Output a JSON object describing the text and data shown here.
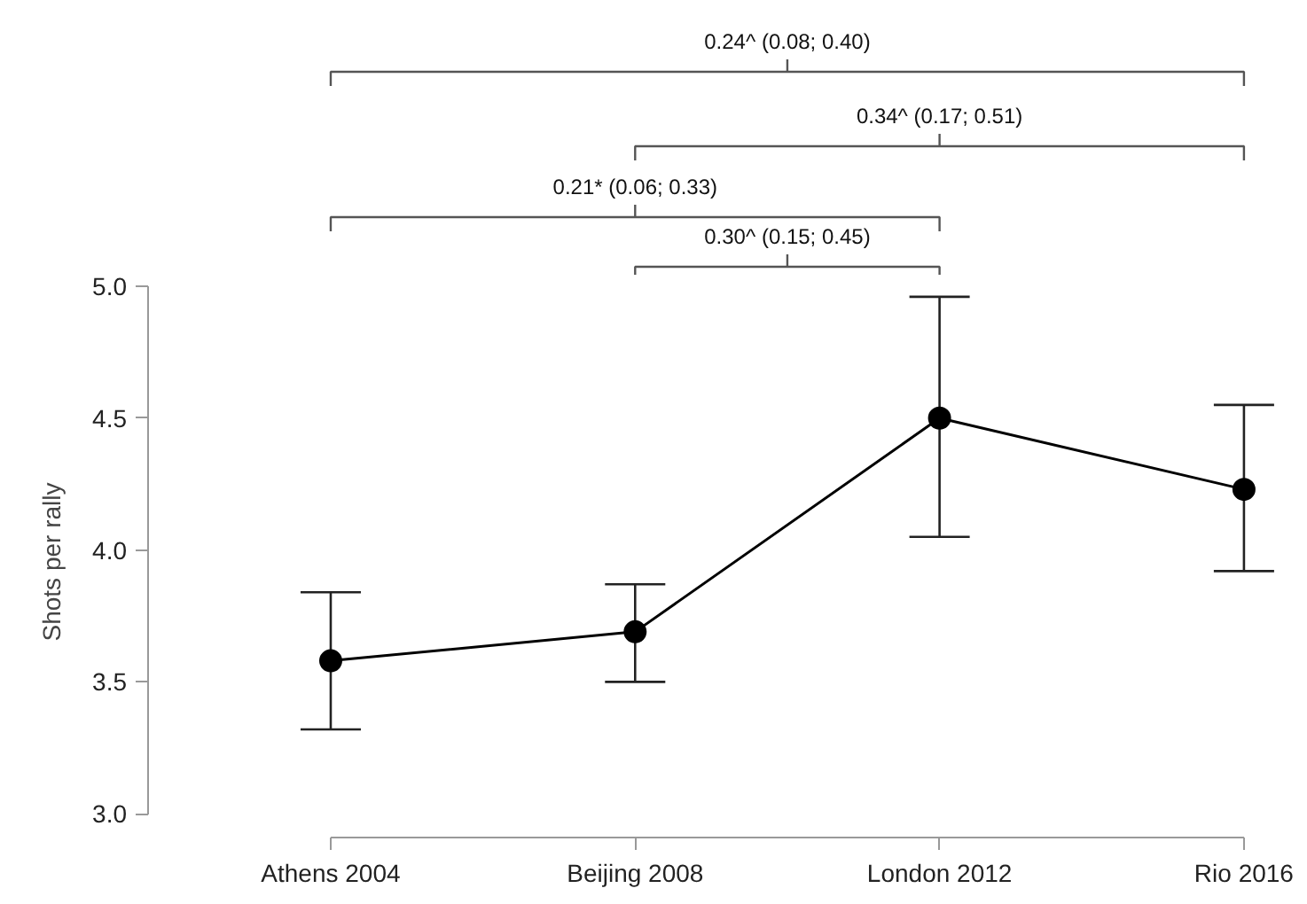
{
  "chart_data": {
    "type": "line",
    "ylabel": "Shots per rally",
    "categories": [
      "Athens 2004",
      "Beijing 2008",
      "London 2012",
      "Rio 2016"
    ],
    "series": [
      {
        "color": "#000000",
        "values": [
          3.58,
          3.69,
          4.5,
          4.23
        ],
        "errors": [
          [
            3.32,
            3.84
          ],
          [
            3.5,
            3.87
          ],
          [
            4.05,
            4.96
          ],
          [
            3.92,
            4.55
          ]
        ]
      }
    ],
    "marker": "circle",
    "line_style": "solid",
    "grid": false,
    "ylim": [
      2.91,
      5.0
    ],
    "yticks": [
      {
        "value": 3,
        "label": "3.0"
      },
      {
        "value": 3.5,
        "label": "3.5"
      },
      {
        "value": 4,
        "label": "4.0"
      },
      {
        "value": 4.5,
        "label": "4.5"
      },
      {
        "value": 5,
        "label": "5.0"
      }
    ],
    "annotations": [
      "0.24^ (0.08; 0.40)",
      "0.34^ (0.17; 0.51)",
      "0.21* (0.06; 0.33)",
      "0.30^ (0.15; 0.45)"
    ]
  }
}
